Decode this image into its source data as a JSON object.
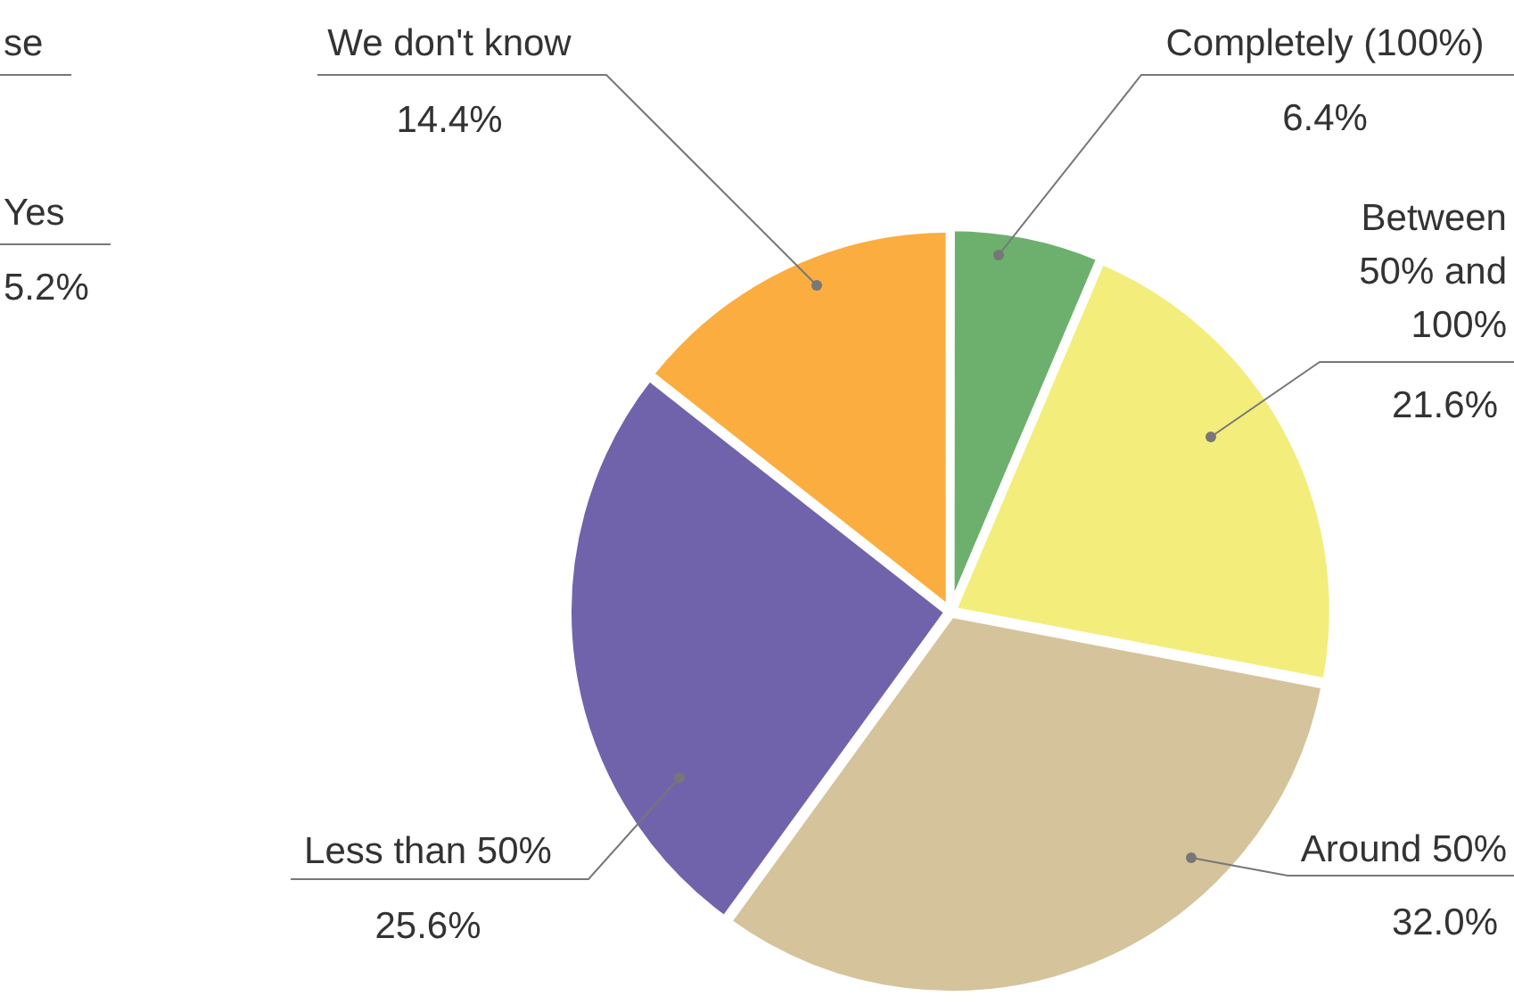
{
  "chart_data": {
    "type": "pie",
    "categories": [
      "Completely (100%)",
      "Between 50% and 100%",
      "Around 50%",
      "Less than 50%",
      "We don't know"
    ],
    "values": [
      6.4,
      21.6,
      32.0,
      25.6,
      14.4
    ],
    "value_labels": [
      "6.4%",
      "21.6%",
      "32.0%",
      "25.6%",
      "14.4%"
    ],
    "colors": [
      "#6db06d",
      "#f3ed7c",
      "#d5c39b",
      "#7163ab",
      "#fbad3f"
    ],
    "annotations": [
      "se",
      "Yes",
      "5.2%"
    ]
  }
}
